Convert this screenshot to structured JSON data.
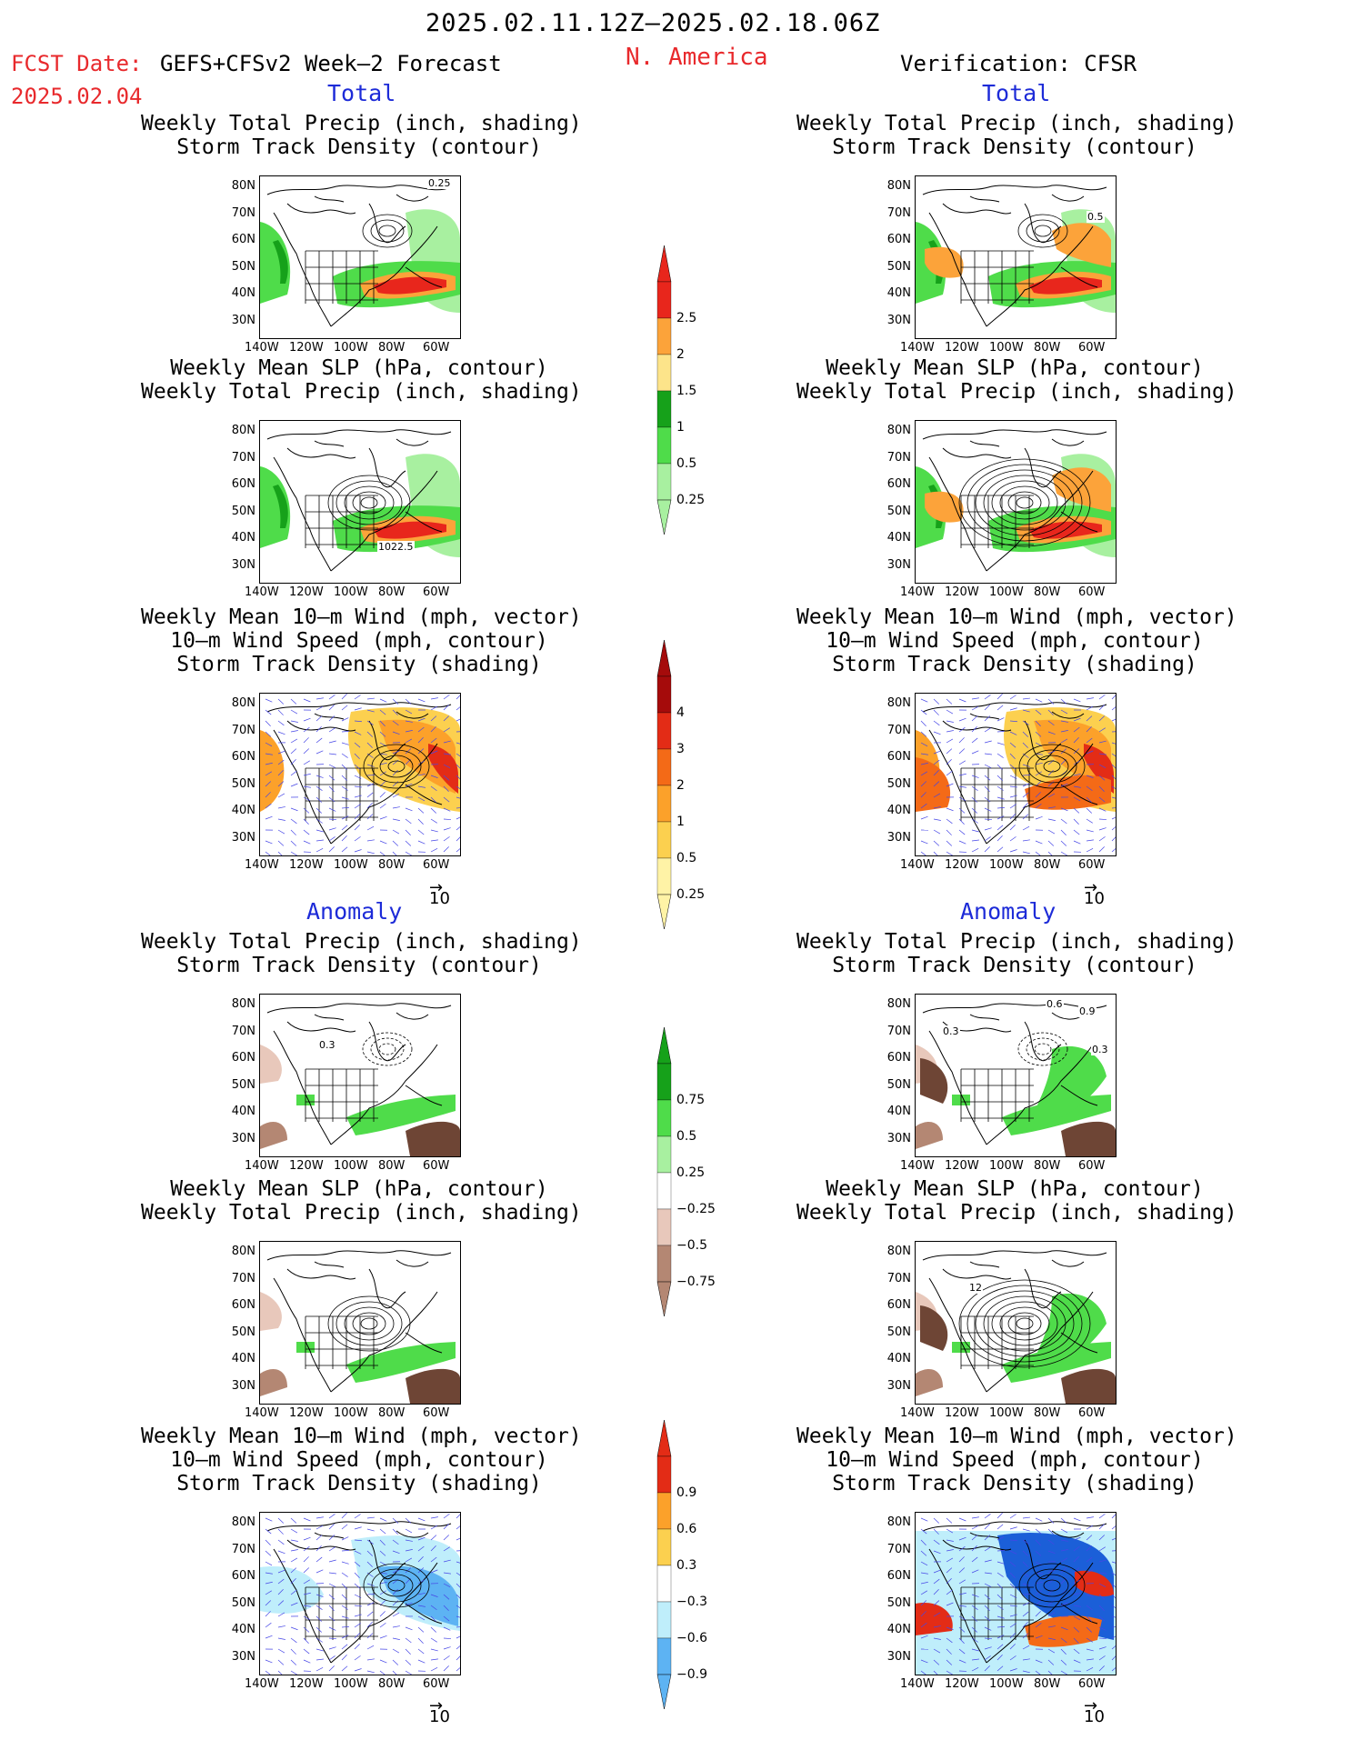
{
  "header": {
    "period": "2025.02.11.12Z–2025.02.18.06Z",
    "fcst_date_label": "FCST Date:",
    "fcst_product": "GEFS+CFSv2 Week–2 Forecast",
    "fcst_date": "2025.02.04",
    "region": "N. America",
    "verification": "Verification: CFSR"
  },
  "sections": {
    "total": "Total",
    "anomaly": "Anomaly"
  },
  "panel_titles": {
    "precip_storm": [
      "Weekly Total Precip (inch, shading)",
      "Storm Track Density (contour)"
    ],
    "slp_precip": [
      "Weekly Mean SLP (hPa, contour)",
      "Weekly Total Precip (inch, shading)"
    ],
    "wind_storm": [
      "Weekly Mean 10–m Wind (mph, vector)",
      "10–m Wind Speed (mph, contour)",
      "Storm Track Density (shading)"
    ]
  },
  "lat_labels": [
    "80N",
    "70N",
    "60N",
    "50N",
    "40N",
    "30N"
  ],
  "lon_labels": [
    "140W",
    "120W",
    "100W",
    "80W",
    "60W"
  ],
  "map_annotations": {
    "total_fcst_precip": "0.25",
    "total_verif_precip": "0.5",
    "total_fcst_slp": "1022.5",
    "anom_fcst_precip": "0.3",
    "anom_verif_precip": [
      "0.6",
      "0.9",
      "0.3",
      "0.3"
    ],
    "anom_verif_slp": "12"
  },
  "vector_reference": "10",
  "colorbars": {
    "total_precip": [
      "2.5",
      "2",
      "1.5",
      "1",
      "0.5",
      "0.25"
    ],
    "total_storm": [
      "4",
      "3",
      "2",
      "1",
      "0.5",
      "0.25"
    ],
    "anom_precip": [
      "0.75",
      "0.5",
      "0.25",
      "−0.25",
      "−0.5",
      "−0.75"
    ],
    "anom_storm": [
      "0.9",
      "0.6",
      "0.3",
      "−0.3",
      "−0.6",
      "−0.9"
    ]
  },
  "colors": {
    "precip_light": "#a8f0a0",
    "precip_mid": "#4fdc4a",
    "precip_dark": "#16a11a",
    "precip_yellow": "#fde48a",
    "precip_orange": "#fca33a",
    "precip_red": "#e8261c",
    "storm_1": "#fff3a6",
    "storm_2": "#fcd04f",
    "storm_3": "#fca12a",
    "storm_4": "#f46a17",
    "storm_5": "#e32c16",
    "storm_6": "#a50b0b",
    "dry_1": "#e8c8bb",
    "dry_2": "#b48773",
    "dry_3": "#6e4535",
    "cool_1": "#bfeefb",
    "cool_2": "#5db3f3",
    "cool_3": "#1b5fd8"
  }
}
